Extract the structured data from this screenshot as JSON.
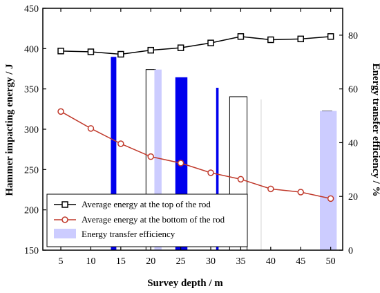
{
  "chart_data": {
    "type": "bar+line",
    "x_values": [
      5,
      10,
      15,
      20,
      25,
      30,
      35,
      40,
      45,
      50
    ],
    "x_ticks": [
      5,
      10,
      15,
      20,
      25,
      30,
      35,
      40,
      45,
      50
    ],
    "xlabel": "Survey depth / m",
    "ylabel_left": "Hammer impacting energy / J",
    "ylabel_right": "Energy transfer efficiency / %",
    "xlim": [
      2,
      52
    ],
    "ylim_left": [
      150,
      450
    ],
    "ylim_right": [
      0,
      90
    ],
    "yticks_left": [
      150,
      200,
      250,
      300,
      350,
      400,
      450
    ],
    "yticks_right": [
      0,
      20,
      40,
      60,
      80
    ],
    "grid": false,
    "legend_position": "bottom-left",
    "series": [
      {
        "name": "Average energy at the top of the rod",
        "axis": "left",
        "style": "line-square",
        "color": "#000000",
        "values": [
          397,
          396,
          393,
          398,
          401,
          407,
          415,
          411,
          412,
          415
        ]
      },
      {
        "name": "Average energy at the bottom of the rod",
        "axis": "left",
        "style": "line-circle",
        "color": "#c0392b",
        "values": [
          322,
          301,
          282,
          266,
          258,
          246,
          238,
          226,
          222,
          214
        ]
      }
    ],
    "bars": {
      "name": "Energy transfer efficiency",
      "axis": "right",
      "legend_color": "#ccccff",
      "items": [
        {
          "x": 13.8,
          "value": 71.8,
          "width_m": 0.8,
          "fill": "#0000ee",
          "stroke": "#0000ee"
        },
        {
          "x": 20.0,
          "value": 67.2,
          "width_m": 1.6,
          "fill": "none",
          "stroke": "#000000"
        },
        {
          "x": 21.2,
          "value": 67.2,
          "width_m": 1.2,
          "fill": "#ccccff",
          "stroke": "none"
        },
        {
          "x": 25.1,
          "value": 64.2,
          "width_m": 1.9,
          "fill": "#0000ee",
          "stroke": "#0000ee"
        },
        {
          "x": 31.1,
          "value": 60.3,
          "width_m": 0.3,
          "fill": "#0000ee",
          "stroke": "#0000ee"
        },
        {
          "x": 34.6,
          "value": 57.1,
          "width_m": 2.9,
          "fill": "none",
          "stroke": "#000000"
        },
        {
          "x": 38.4,
          "value": 56.1,
          "width_m": 0.1,
          "fill": "#cccccc",
          "stroke": "none"
        },
        {
          "x": 49.4,
          "value": 51.8,
          "width_m": 1.6,
          "fill": "none",
          "stroke": "#000000"
        },
        {
          "x": 49.6,
          "value": 51.8,
          "width_m": 2.8,
          "fill": "#ccccff",
          "stroke": "none"
        }
      ]
    }
  }
}
